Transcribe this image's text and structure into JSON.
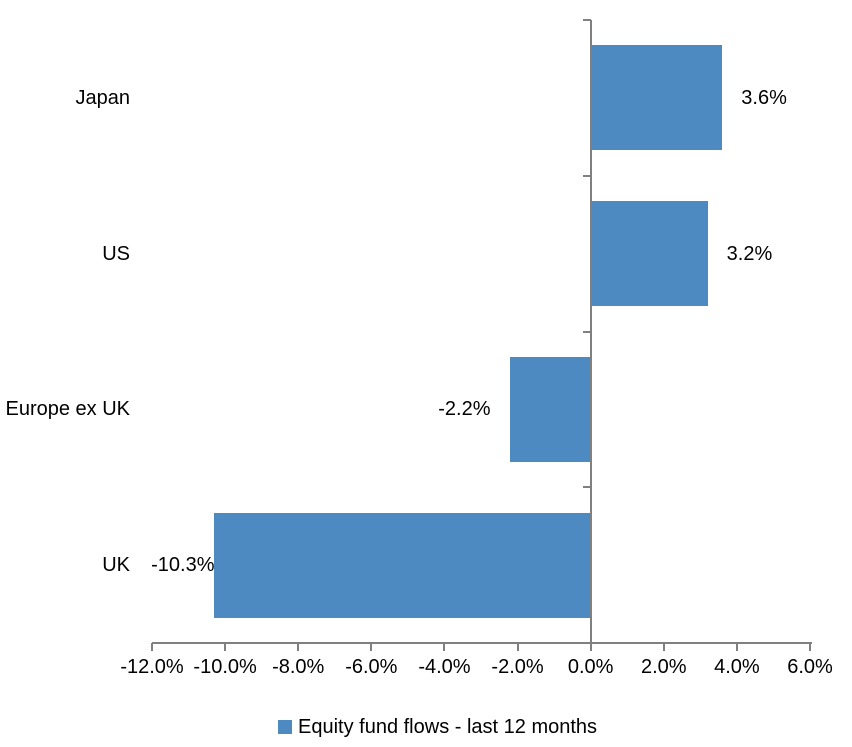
{
  "chart_data": {
    "type": "bar",
    "orientation": "horizontal",
    "title": "",
    "categories": [
      "Japan",
      "US",
      "Europe ex UK",
      "UK"
    ],
    "values": [
      3.6,
      3.2,
      -2.2,
      -10.3
    ],
    "value_labels": [
      "3.6%",
      "3.2%",
      "-2.2%",
      "-10.3%"
    ],
    "series_name": "Equity fund flows - last 12 months",
    "x_tick_labels": [
      "-12.0%",
      "-10.0%",
      "-8.0%",
      "-6.0%",
      "-4.0%",
      "-2.0%",
      "0.0%",
      "2.0%",
      "4.0%",
      "6.0%"
    ],
    "x_tick_values": [
      -12,
      -10,
      -8,
      -6,
      -4,
      -2,
      0,
      2,
      4,
      6
    ],
    "xlim": [
      -12,
      6
    ],
    "grid": "off",
    "legend_position": "bottom",
    "bar_color": "#4E8AC2",
    "axis_color": "#808080",
    "text_color": "#000000",
    "background_color": "#FFFFFF"
  },
  "legend": {
    "label": "Equity fund flows - last 12 months"
  }
}
